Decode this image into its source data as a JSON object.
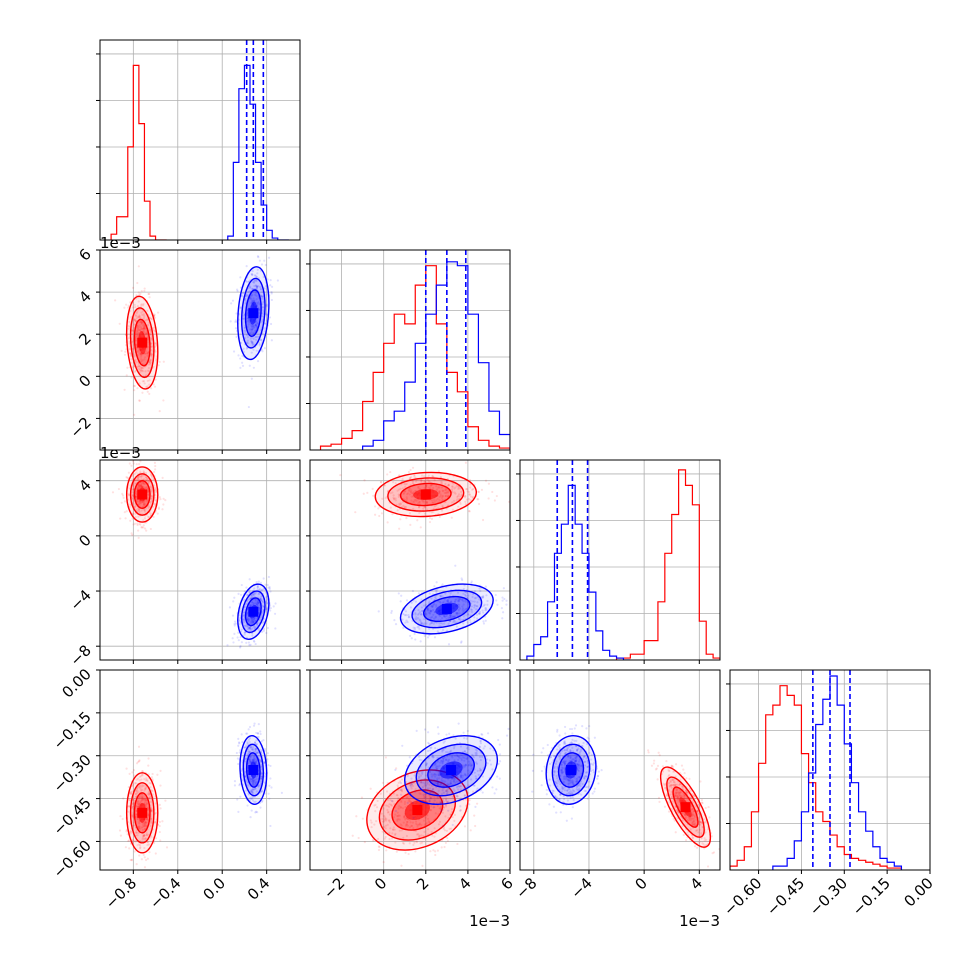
{
  "chart_data": {
    "type": "scatter",
    "subtype": "corner-plot",
    "parameters": 4,
    "series": [
      {
        "color": "#ff0000"
      },
      {
        "color": "#0000ff"
      }
    ],
    "histograms": [
      {
        "xlim": [
          -1.1,
          0.7
        ],
        "red": {
          "edges": [
            -1.0,
            -0.95,
            -0.9,
            -0.85,
            -0.8,
            -0.75,
            -0.7,
            -0.65,
            -0.6,
            -0.55,
            -0.5
          ],
          "counts": [
            0.03,
            0.12,
            0.12,
            0.48,
            0.9,
            0.6,
            0.2,
            0.02,
            0,
            0
          ]
        },
        "blue": {
          "edges": [
            0.05,
            0.1,
            0.15,
            0.2,
            0.25,
            0.3,
            0.35,
            0.4,
            0.45,
            0.5,
            0.55,
            0.6
          ],
          "counts": [
            0.02,
            0.4,
            0.78,
            0.9,
            0.7,
            0.4,
            0.18,
            0.05,
            0.01,
            0,
            0
          ]
        },
        "quantiles": [
          0.22,
          0.28,
          0.37
        ]
      },
      {
        "xlim": [
          -3.5,
          6.0
        ],
        "red": {
          "edges": [
            -3.0,
            -2.5,
            -2.0,
            -1.5,
            -1.0,
            -0.5,
            0.0,
            0.5,
            1.0,
            1.5,
            2.0,
            2.5,
            3.0,
            3.5,
            4.0,
            4.5,
            5.0,
            5.5,
            6.0
          ],
          "counts": [
            0.02,
            0.03,
            0.06,
            0.1,
            0.25,
            0.4,
            0.55,
            0.7,
            0.65,
            0.85,
            0.95,
            0.65,
            0.4,
            0.3,
            0.12,
            0.05,
            0.02,
            0.01
          ]
        },
        "blue": {
          "edges": [
            -1.0,
            -0.5,
            0.0,
            0.5,
            1.0,
            1.5,
            2.0,
            2.5,
            3.0,
            3.5,
            4.0,
            4.5,
            5.0,
            5.5,
            6.0
          ],
          "counts": [
            0.02,
            0.05,
            0.15,
            0.2,
            0.35,
            0.55,
            0.7,
            0.85,
            0.97,
            0.95,
            0.7,
            0.45,
            0.2,
            0.08
          ]
        },
        "quantiles": [
          2.0,
          3.0,
          3.9
        ]
      },
      {
        "xlim": [
          -9.0,
          5.5
        ],
        "red": {
          "edges": [
            -2.0,
            -1.0,
            0.0,
            1.0,
            1.5,
            2.0,
            2.5,
            3.0,
            3.5,
            4.0,
            4.5,
            5.0,
            5.5
          ],
          "counts": [
            0.01,
            0.03,
            0.1,
            0.3,
            0.55,
            0.75,
            0.98,
            0.9,
            0.8,
            0.2,
            0.03,
            0.01
          ]
        },
        "blue": {
          "edges": [
            -8.5,
            -8.0,
            -7.5,
            -7.0,
            -6.5,
            -6.0,
            -5.5,
            -5.0,
            -4.5,
            -4.0,
            -3.5,
            -3.0,
            -2.5,
            -2.0,
            -1.5,
            -1.0
          ],
          "counts": [
            0.02,
            0.08,
            0.12,
            0.3,
            0.55,
            0.7,
            0.9,
            0.7,
            0.55,
            0.35,
            0.15,
            0.05,
            0.02,
            0.01,
            0.0
          ]
        },
        "quantiles": [
          -6.3,
          -5.2,
          -4.1
        ]
      },
      {
        "xlim": [
          -0.7,
          0.0
        ],
        "red": {
          "edges": [
            -0.7,
            -0.675,
            -0.65,
            -0.625,
            -0.6,
            -0.575,
            -0.55,
            -0.525,
            -0.5,
            -0.475,
            -0.45,
            -0.425,
            -0.4,
            -0.375,
            -0.35,
            -0.325,
            -0.3,
            -0.275,
            -0.25,
            -0.225,
            -0.2,
            -0.175,
            -0.15,
            -0.125,
            -0.1
          ],
          "counts": [
            0.02,
            0.05,
            0.12,
            0.3,
            0.55,
            0.8,
            0.85,
            0.95,
            0.9,
            0.85,
            0.6,
            0.45,
            0.3,
            0.25,
            0.18,
            0.12,
            0.08,
            0.06,
            0.05,
            0.04,
            0.03,
            0.02,
            0.01,
            0.01
          ]
        },
        "blue": {
          "edges": [
            -0.55,
            -0.5,
            -0.475,
            -0.45,
            -0.425,
            -0.4,
            -0.375,
            -0.35,
            -0.325,
            -0.3,
            -0.275,
            -0.25,
            -0.225,
            -0.2,
            -0.175,
            -0.15,
            -0.125,
            -0.1
          ],
          "counts": [
            0.02,
            0.06,
            0.15,
            0.3,
            0.5,
            0.75,
            0.88,
            1.0,
            0.85,
            0.65,
            0.45,
            0.3,
            0.2,
            0.12,
            0.06,
            0.04,
            0.02
          ]
        },
        "quantiles": [
          -0.41,
          -0.35,
          -0.28
        ]
      }
    ],
    "blobs": [
      {
        "row": 1,
        "col": 0,
        "red": {
          "mean": [
            -0.72,
            1.6
          ],
          "sd": [
            0.07,
            1.1
          ],
          "rho": -0.2
        },
        "blue": {
          "mean": [
            0.28,
            3.0
          ],
          "sd": [
            0.07,
            1.1
          ],
          "rho": 0.2
        }
      },
      {
        "row": 2,
        "col": 0,
        "red": {
          "mean": [
            -0.72,
            3.0
          ],
          "sd": [
            0.07,
            1.0
          ],
          "rho": 0.0
        },
        "blue": {
          "mean": [
            0.28,
            -5.5
          ],
          "sd": [
            0.07,
            1.0
          ],
          "rho": 0.3
        }
      },
      {
        "row": 2,
        "col": 1,
        "red": {
          "mean": [
            2.0,
            3.0
          ],
          "sd": [
            1.2,
            0.8
          ],
          "rho": 0.1
        },
        "blue": {
          "mean": [
            3.0,
            -5.3
          ],
          "sd": [
            1.1,
            0.9
          ],
          "rho": 0.35
        }
      },
      {
        "row": 3,
        "col": 0,
        "red": {
          "mean": [
            -0.72,
            -0.5
          ],
          "sd": [
            0.07,
            0.07
          ],
          "rho": 0.0
        },
        "blue": {
          "mean": [
            0.28,
            -0.35
          ],
          "sd": [
            0.06,
            0.06
          ],
          "rho": -0.1
        }
      },
      {
        "row": 3,
        "col": 1,
        "red": {
          "mean": [
            1.6,
            -0.49
          ],
          "sd": [
            1.2,
            0.07
          ],
          "rho": 0.25
        },
        "blue": {
          "mean": [
            3.2,
            -0.35
          ],
          "sd": [
            1.1,
            0.06
          ],
          "rho": 0.3
        }
      },
      {
        "row": 3,
        "col": 2,
        "red": {
          "mean": [
            3.0,
            -0.48
          ],
          "sd": [
            0.9,
            0.07
          ],
          "rho": -0.75
        },
        "blue": {
          "mean": [
            -5.3,
            -0.35
          ],
          "sd": [
            0.9,
            0.06
          ],
          "rho": 0.1
        }
      }
    ],
    "axes": [
      {
        "label": "",
        "range": [
          -1.1,
          0.7
        ],
        "ticks": [
          -0.8,
          -0.4,
          0.0,
          0.4
        ],
        "tick_labels": [
          "−0.8",
          "−0.4",
          "0.0",
          "0.4"
        ]
      },
      {
        "label": "",
        "range": [
          -3.5,
          6.0
        ],
        "ticks": [
          -2,
          0,
          2,
          4,
          6
        ],
        "tick_labels": [
          "−2",
          "0",
          "2",
          "4",
          "6"
        ],
        "offset_text": "1e−3"
      },
      {
        "label": "",
        "range": [
          -9.0,
          5.5
        ],
        "ticks": [
          -8,
          -4,
          0,
          4
        ],
        "tick_labels": [
          "−8",
          "−4",
          "0",
          "4"
        ],
        "offset_text": "1e−3"
      },
      {
        "label": "",
        "range": [
          -0.7,
          0.0
        ],
        "ticks": [
          -0.6,
          -0.45,
          -0.3,
          -0.15,
          0.0
        ],
        "tick_labels": [
          "−0.60",
          "−0.45",
          "−0.30",
          "−0.15",
          "0.00"
        ]
      }
    ],
    "y_axes": [
      null,
      {
        "range": [
          -3.5,
          6.0
        ],
        "ticks": [
          -2,
          0,
          2,
          4,
          6
        ],
        "tick_labels": [
          "−2",
          "0",
          "2",
          "4",
          "6"
        ],
        "offset_text": "1e−3"
      },
      {
        "range": [
          -9.0,
          5.5
        ],
        "ticks": [
          -8,
          -4,
          0,
          4
        ],
        "tick_labels": [
          "−8",
          "−4",
          "0",
          "4"
        ],
        "offset_text": "1e−3"
      },
      {
        "range": [
          -0.7,
          0.0
        ],
        "ticks": [
          -0.6,
          -0.45,
          -0.3,
          -0.15,
          0.0
        ],
        "tick_labels": [
          "−0.60",
          "−0.45",
          "−0.30",
          "−0.15",
          "0.00"
        ]
      }
    ],
    "grid": true,
    "quantile_color": "#0000ff"
  }
}
